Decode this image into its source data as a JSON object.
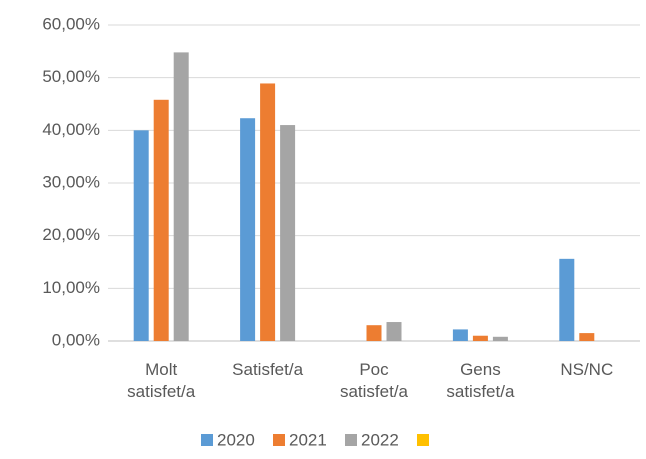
{
  "chart_data": {
    "type": "bar",
    "categories": [
      "Molt satisfet/a",
      "Satisfet/a",
      "Poc satisfet/a",
      "Gens satisfet/a",
      "NS/NC"
    ],
    "series": [
      {
        "name": "2020",
        "color": "#5b9bd5",
        "values": [
          40.0,
          42.3,
          0,
          2.2,
          15.6
        ]
      },
      {
        "name": "2021",
        "color": "#ed7d31",
        "values": [
          45.8,
          48.9,
          3.0,
          1.0,
          1.5
        ]
      },
      {
        "name": "2022",
        "color": "#a5a5a5",
        "values": [
          54.8,
          41.0,
          3.6,
          0.8,
          0
        ]
      },
      {
        "color": "#ffc000",
        "values": [
          null,
          null,
          null,
          null,
          null
        ]
      }
    ],
    "ylim": [
      0,
      60
    ],
    "yticks": [
      {
        "value": 0,
        "label": "0,00%"
      },
      {
        "value": 10,
        "label": "10,00%"
      },
      {
        "value": 20,
        "label": "20,00%"
      },
      {
        "value": 30,
        "label": "30,00%"
      },
      {
        "value": 40,
        "label": "40,00%"
      },
      {
        "value": 50,
        "label": "50,00%"
      },
      {
        "value": 60,
        "label": "60,00%"
      }
    ],
    "grid": true,
    "legend": "bottom"
  }
}
